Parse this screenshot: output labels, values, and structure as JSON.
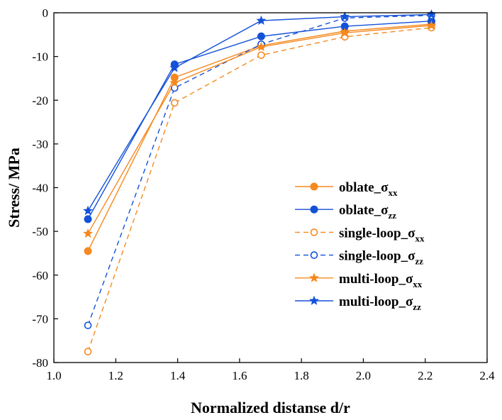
{
  "chart_data": {
    "type": "line",
    "title": "",
    "xlabel": "Normalized distanse d/r",
    "ylabel": "Stress/ MPa",
    "xlim": [
      1.0,
      2.4
    ],
    "ylim": [
      -80,
      0
    ],
    "xticks": [
      1.0,
      1.2,
      1.4,
      1.6,
      1.8,
      2.0,
      2.2,
      2.4
    ],
    "yticks": [
      0,
      -10,
      -20,
      -30,
      -40,
      -50,
      -60,
      -70,
      -80
    ],
    "xtick_labels": [
      "1.0",
      "1.2",
      "1.4",
      "1.6",
      "1.8",
      "2.0",
      "2.2",
      "2.4"
    ],
    "ytick_labels": [
      "0",
      "-10",
      "-20",
      "-30",
      "-40",
      "-50",
      "-60",
      "-70",
      "-80"
    ],
    "grid": false,
    "legend_position": "right",
    "x": [
      1.11,
      1.39,
      1.67,
      1.94,
      2.22
    ],
    "series": [
      {
        "name": "oblate_σxx",
        "base": "oblate_σ",
        "sub": "xx",
        "color": "#F5891F",
        "dash": "solid",
        "marker": "filled-circle",
        "values": [
          -54.5,
          -14.8,
          -7.5,
          -4.2,
          -2.6
        ]
      },
      {
        "name": "oblate_σzz",
        "base": "oblate_σ",
        "sub": "zz",
        "color": "#1451D8",
        "dash": "solid",
        "marker": "filled-circle",
        "values": [
          -47.2,
          -11.8,
          -5.4,
          -3.1,
          -1.9
        ]
      },
      {
        "name": "single-loop_σxx",
        "base": "single-loop_σ",
        "sub": "xx",
        "color": "#F5891F",
        "dash": "dashed",
        "marker": "open-circle",
        "values": [
          -77.5,
          -20.6,
          -9.7,
          -5.5,
          -3.4
        ]
      },
      {
        "name": "single-loop_σzz",
        "base": "single-loop_σ",
        "sub": "zz",
        "color": "#1451D8",
        "dash": "dashed",
        "marker": "open-circle",
        "values": [
          -71.5,
          -17.2,
          -7.2,
          -1.2,
          -0.6
        ]
      },
      {
        "name": "multi-loop_σxx",
        "base": "multi-loop_σ",
        "sub": "xx",
        "color": "#F5891F",
        "dash": "solid",
        "marker": "star",
        "values": [
          -50.5,
          -16.0,
          -7.8,
          -4.6,
          -2.9
        ]
      },
      {
        "name": "multi-loop_σzz",
        "base": "multi-loop_σ",
        "sub": "zz",
        "color": "#1451D8",
        "dash": "solid",
        "marker": "star",
        "values": [
          -45.3,
          -12.6,
          -1.8,
          -0.9,
          -0.4
        ]
      }
    ]
  }
}
